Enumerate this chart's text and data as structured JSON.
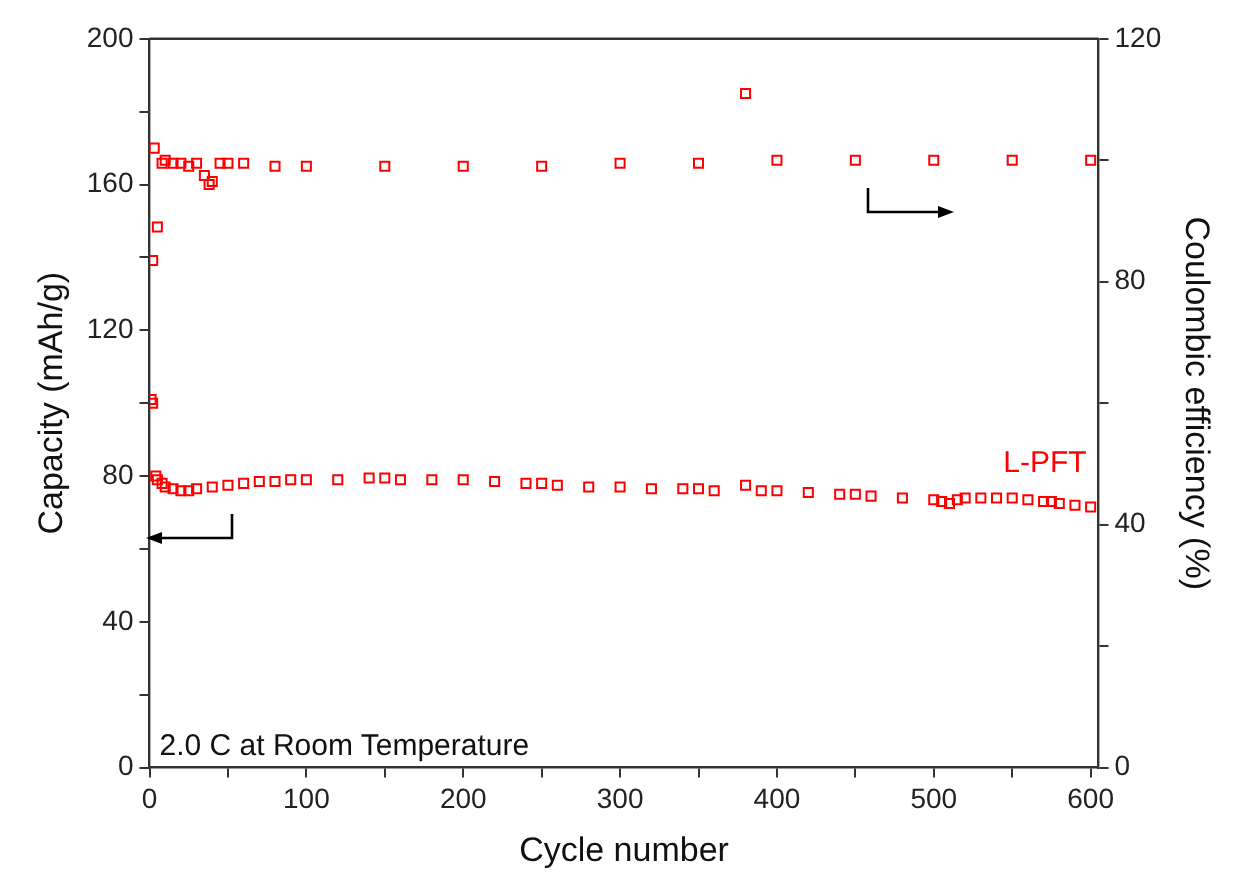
{
  "chart_data": {
    "type": "scatter",
    "xlabel": "Cycle number",
    "ylabel": "Capacity (mAh/g)",
    "y2label": "Coulombic efficiency (%)",
    "xlim": [
      0,
      605
    ],
    "xticks": [
      0,
      {
        "value": 50,
        "label": null
      },
      100,
      {
        "value": 150,
        "label": null
      },
      200,
      {
        "value": 250,
        "label": null
      },
      300,
      {
        "value": 350,
        "label": null
      },
      400,
      {
        "value": 450,
        "label": null
      },
      500,
      {
        "value": 550,
        "label": null
      },
      600
    ],
    "ylim": [
      0,
      200
    ],
    "yticks": [
      0,
      {
        "value": 20,
        "label": null
      },
      40,
      {
        "value": 60,
        "label": null
      },
      80,
      {
        "value": 100,
        "label": null
      },
      120,
      {
        "value": 140,
        "label": null
      },
      160,
      {
        "value": 180,
        "label": null
      },
      200
    ],
    "y2lim": [
      0,
      120
    ],
    "y2ticks": [
      0,
      {
        "value": 20,
        "label": null
      },
      40,
      {
        "value": 60,
        "label": null
      },
      80,
      {
        "value": 100,
        "label": null
      },
      120
    ],
    "marker": "square",
    "legend": false,
    "grid": false,
    "series": [
      {
        "name": "L-PFT",
        "color": "#ff0000",
        "x": [
          1,
          2,
          4,
          5,
          8,
          10,
          15,
          20,
          25,
          30,
          40,
          50,
          60,
          70,
          80,
          90,
          100,
          120,
          140,
          150,
          160,
          180,
          200,
          220,
          240,
          250,
          260,
          280,
          300,
          320,
          340,
          350,
          360,
          380,
          390,
          400,
          420,
          440,
          450,
          460,
          480,
          500,
          505,
          510,
          515,
          520,
          530,
          540,
          550,
          560,
          570,
          575,
          580,
          590,
          600
        ],
        "values": [
          101,
          100,
          80,
          79,
          78,
          77,
          76.5,
          76,
          76,
          76.5,
          77,
          77.5,
          78,
          78.5,
          78.5,
          79,
          79,
          79,
          79.5,
          79.5,
          79,
          79,
          79,
          78.5,
          78,
          78,
          77.5,
          77,
          77,
          76.5,
          76.5,
          76.5,
          76,
          77.5,
          76,
          76,
          75.5,
          75,
          75,
          74.5,
          74,
          73.5,
          73,
          72.5,
          73.5,
          74,
          74,
          74,
          74,
          73.5,
          73,
          73,
          72.5,
          72,
          71.5
        ]
      },
      {
        "axis": "y2",
        "color": "#ff0000",
        "x": [
          2,
          3,
          5,
          8,
          10,
          15,
          20,
          25,
          30,
          35,
          38,
          40,
          45,
          50,
          60,
          80,
          100,
          150,
          200,
          250,
          300,
          350,
          380,
          400,
          450,
          500,
          550,
          600
        ],
        "values": [
          83.5,
          102,
          89,
          99.5,
          100,
          99.5,
          99.5,
          99,
          99.5,
          97.5,
          96,
          96.5,
          99.5,
          99.5,
          99.5,
          99,
          99,
          99,
          99,
          99,
          99.5,
          99.5,
          111,
          100,
          100,
          100,
          100,
          100
        ]
      }
    ],
    "annotations": [
      "2.0 C at Room Temperature"
    ]
  }
}
